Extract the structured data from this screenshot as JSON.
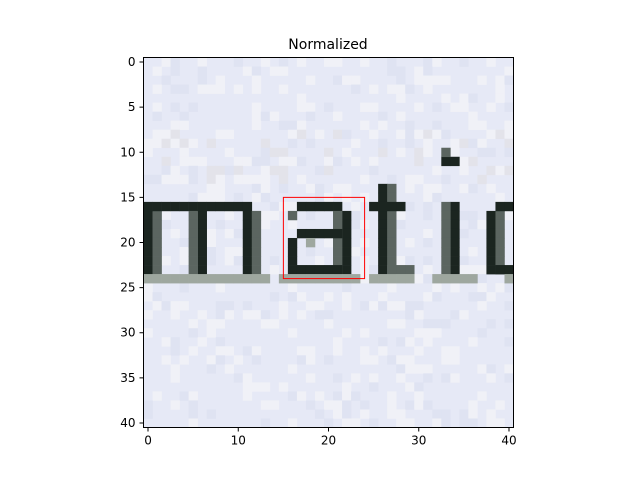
{
  "chart_data": {
    "type": "heatmap",
    "title": "Normalized",
    "xlabel": "",
    "ylabel": "",
    "image": {
      "kind": "grayscale-crop-of-text",
      "width_cells": 41,
      "height_cells": 41,
      "visible_text": "matio",
      "background_color": "#e6e9f6",
      "ink_color": "#1b2520"
    },
    "x_range": [
      -0.5,
      40.5
    ],
    "y_range": [
      40.5,
      -0.5
    ],
    "x_ticks": [
      0,
      10,
      20,
      30,
      40
    ],
    "y_ticks": [
      0,
      5,
      10,
      15,
      20,
      25,
      30,
      35,
      40
    ],
    "highlight_box": {
      "color": "#ff0000",
      "x_range": [
        15,
        24
      ],
      "y_range": [
        15,
        24
      ]
    },
    "grid": false,
    "legend": "none"
  }
}
